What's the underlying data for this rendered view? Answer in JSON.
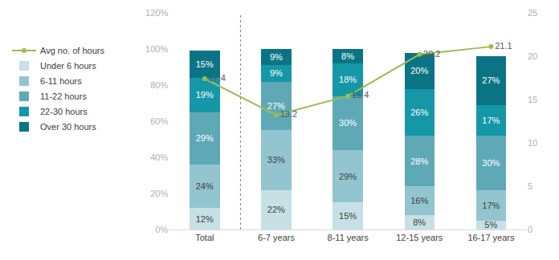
{
  "chart_data": {
    "type": "bar",
    "stacked": true,
    "data_labels": true,
    "grid": false,
    "legend": "left",
    "categories": [
      "Total",
      "6-7 years",
      "8-11 years",
      "12-15 years",
      "16-17 years"
    ],
    "ylim": [
      0,
      120
    ],
    "yticks": [
      {
        "value": 0,
        "label": "0%"
      },
      {
        "value": 20,
        "label": "20%"
      },
      {
        "value": 40,
        "label": "40%"
      },
      {
        "value": 60,
        "label": "60%"
      },
      {
        "value": 80,
        "label": "80%"
      },
      {
        "value": 100,
        "label": "100%"
      },
      {
        "value": 120,
        "label": "120%"
      }
    ],
    "y2lim": [
      0,
      25
    ],
    "y2ticks": [
      0,
      5,
      10,
      15,
      20,
      25
    ],
    "series": [
      {
        "name": "Under 6 hours",
        "color": "#c6e0e5",
        "values": [
          12,
          22,
          15,
          8,
          5
        ],
        "value_labels": [
          "12%",
          "22%",
          "15%",
          "8%",
          "5%"
        ]
      },
      {
        "name": "6-11 hours",
        "color": "#92c5cf",
        "values": [
          24,
          33,
          29,
          16,
          17
        ],
        "value_labels": [
          "24%",
          "33%",
          "29%",
          "16%",
          "17%"
        ]
      },
      {
        "name": "11-22 hours",
        "color": "#5fa9b7",
        "values": [
          29,
          27,
          30,
          28,
          30
        ],
        "value_labels": [
          "29%",
          "27%",
          "30%",
          "28%",
          "30%"
        ]
      },
      {
        "name": "22-30 hours",
        "color": "#1597a8",
        "values": [
          19,
          9,
          18,
          26,
          17
        ],
        "value_labels": [
          "19%",
          "9%",
          "18%",
          "26%",
          "17%"
        ]
      },
      {
        "name": "Over 30 hours",
        "color": "#0b7484",
        "values": [
          15,
          9,
          8,
          20,
          27
        ],
        "value_labels": [
          "15%",
          "9%",
          "8%",
          "20%",
          "27%"
        ]
      },
      {
        "name": "Avg no. of hours",
        "type": "line",
        "axis": "y2",
        "color": "#9dbb55",
        "marker": "circle",
        "values": [
          17.4,
          13.2,
          15.4,
          20.2,
          21.1
        ]
      }
    ]
  }
}
